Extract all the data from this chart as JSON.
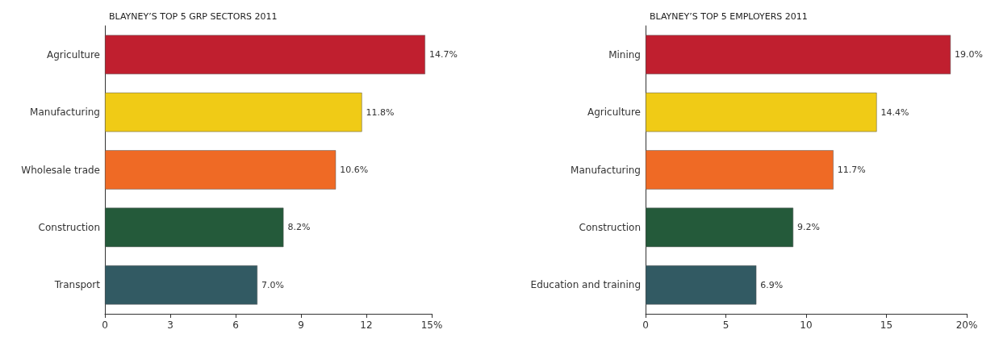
{
  "chart_data": [
    {
      "type": "bar",
      "orientation": "horizontal",
      "title": "BLAYNEY’S TOP 5 GRP SECTORS 2011",
      "categories": [
        "Agriculture",
        "Manufacturing",
        "Wholesale trade",
        "Construction",
        "Transport"
      ],
      "values": [
        14.7,
        11.8,
        10.6,
        8.2,
        7.0
      ],
      "value_labels": [
        "14.7%",
        "11.8%",
        "10.6%",
        "8.2%",
        "7.0%"
      ],
      "colors": [
        "#c01f2f",
        "#f0cb16",
        "#ef6a25",
        "#245a3a",
        "#325a63"
      ],
      "xlim": [
        0,
        15
      ],
      "xticks": [
        0,
        3,
        6,
        9,
        12,
        {
          "value": 15,
          "label": "15%"
        }
      ]
    },
    {
      "type": "bar",
      "orientation": "horizontal",
      "title": "BLAYNEY’S TOP 5 EMPLOYERS 2011",
      "categories": [
        "Mining",
        "Agriculture",
        "Manufacturing",
        "Construction",
        "Education and training"
      ],
      "values": [
        19.0,
        14.4,
        11.7,
        9.2,
        6.9
      ],
      "value_labels": [
        "19.0%",
        "14.4%",
        "11.7%",
        "9.2%",
        "6.9%"
      ],
      "colors": [
        "#c01f2f",
        "#f0cb16",
        "#ef6a25",
        "#245a3a",
        "#325a63"
      ],
      "xlim": [
        0,
        20
      ],
      "xticks": [
        0,
        5,
        10,
        15,
        {
          "value": 20,
          "label": "20%"
        }
      ]
    }
  ]
}
